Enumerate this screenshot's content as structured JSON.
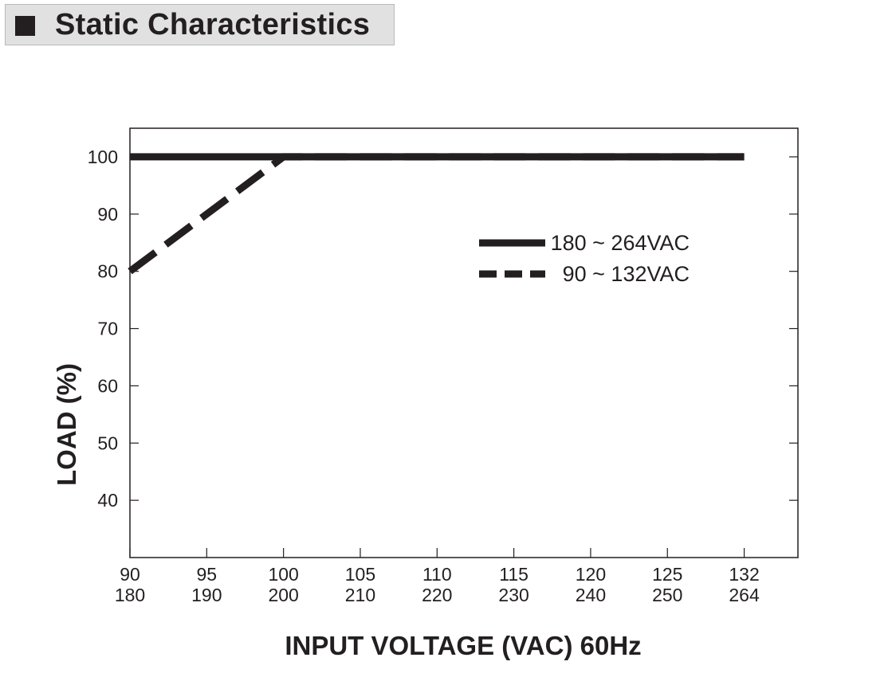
{
  "title": "Static Characteristics",
  "chart_data": {
    "type": "line",
    "title": "",
    "xlabel": "INPUT VOLTAGE (VAC) 60Hz",
    "ylabel": "LOAD (%)",
    "x_ticks": [
      {
        "value": 90,
        "label_top": "90",
        "label_bottom": "180"
      },
      {
        "value": 95,
        "label_top": "95",
        "label_bottom": "190"
      },
      {
        "value": 100,
        "label_top": "100",
        "label_bottom": "200"
      },
      {
        "value": 105,
        "label_top": "105",
        "label_bottom": "210"
      },
      {
        "value": 110,
        "label_top": "110",
        "label_bottom": "220"
      },
      {
        "value": 115,
        "label_top": "115",
        "label_bottom": "230"
      },
      {
        "value": 120,
        "label_top": "120",
        "label_bottom": "240"
      },
      {
        "value": 125,
        "label_top": "125",
        "label_bottom": "250"
      },
      {
        "value": 130,
        "label_top": "132",
        "label_bottom": "264"
      }
    ],
    "y_ticks": [
      40,
      50,
      60,
      70,
      80,
      90,
      100
    ],
    "xlim": [
      90,
      133.5
    ],
    "ylim": [
      30,
      105
    ],
    "grid": false,
    "legend_position": "center-right",
    "series": [
      {
        "name": "180 ~ 264VAC",
        "style": "solid",
        "points": [
          {
            "x": 90,
            "y": 100
          },
          {
            "x": 130,
            "y": 100
          }
        ]
      },
      {
        "name": "90 ~ 132VAC",
        "style": "dashed",
        "points": [
          {
            "x": 90,
            "y": 80
          },
          {
            "x": 100,
            "y": 100
          },
          {
            "x": 130,
            "y": 100
          }
        ]
      }
    ],
    "line_color": "#231f20"
  }
}
